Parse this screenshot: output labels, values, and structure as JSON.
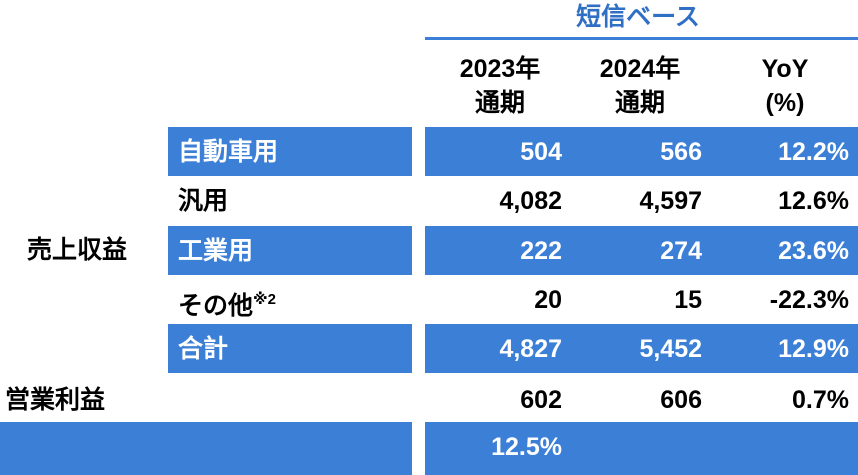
{
  "header": {
    "basis": "短信ベース",
    "columns": [
      {
        "line1": "2023年",
        "line2": "通期"
      },
      {
        "line1": "2024年",
        "line2": "通期"
      },
      {
        "line1": "YoY",
        "line2": "(%)"
      }
    ]
  },
  "sections": {
    "revenue": "売上収益",
    "operating_profit": "営業利益"
  },
  "rows": [
    {
      "label": "自動車用",
      "fy2023": "504",
      "fy2024": "566",
      "yoy": "12.2%"
    },
    {
      "label": "汎用",
      "fy2023": "4,082",
      "fy2024": "4,597",
      "yoy": "12.6%"
    },
    {
      "label": "工業用",
      "fy2023": "222",
      "fy2024": "274",
      "yoy": "23.6%"
    },
    {
      "label": "その他",
      "label_note": "※2",
      "fy2023": "20",
      "fy2024": "15",
      "yoy": "-22.3%"
    },
    {
      "label": "合計",
      "fy2023": "4,827",
      "fy2024": "5,452",
      "yoy": "12.9%"
    }
  ],
  "operating_profit_row": {
    "fy2023": "602",
    "fy2024": "606",
    "yoy": "0.7%"
  },
  "margin_row": {
    "fy2023": "12.5%"
  },
  "colors": {
    "band": "#3c7fd6",
    "header_text": "#2f6fc4"
  }
}
